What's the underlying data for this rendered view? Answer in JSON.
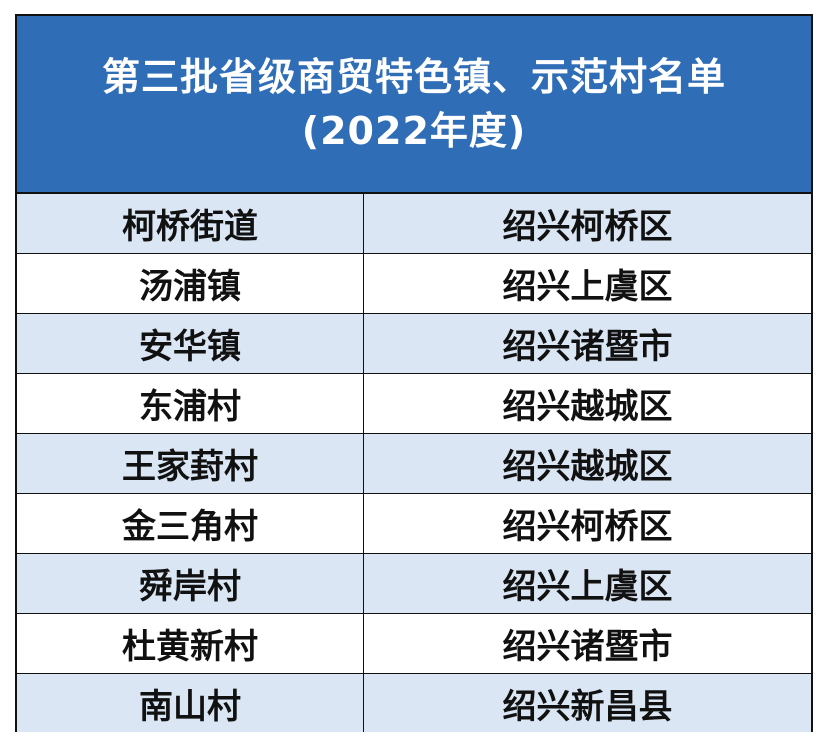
{
  "title": {
    "line1": "第三批省级商贸特色镇、示范村名单",
    "line2": "(2022年度)"
  },
  "colors": {
    "header_bg": "#2f6db7",
    "row_alt_bg": "#dbe6f4",
    "border": "#111111"
  },
  "rows": [
    {
      "name": "柯桥街道",
      "region": "绍兴柯桥区"
    },
    {
      "name": "汤浦镇",
      "region": "绍兴上虞区"
    },
    {
      "name": "安华镇",
      "region": "绍兴诸暨市"
    },
    {
      "name": "东浦村",
      "region": "绍兴越城区"
    },
    {
      "name": "王家葑村",
      "region": "绍兴越城区"
    },
    {
      "name": "金三角村",
      "region": "绍兴柯桥区"
    },
    {
      "name": "舜岸村",
      "region": "绍兴上虞区"
    },
    {
      "name": "杜黄新村",
      "region": "绍兴诸暨市"
    },
    {
      "name": "南山村",
      "region": "绍兴新昌县"
    }
  ]
}
